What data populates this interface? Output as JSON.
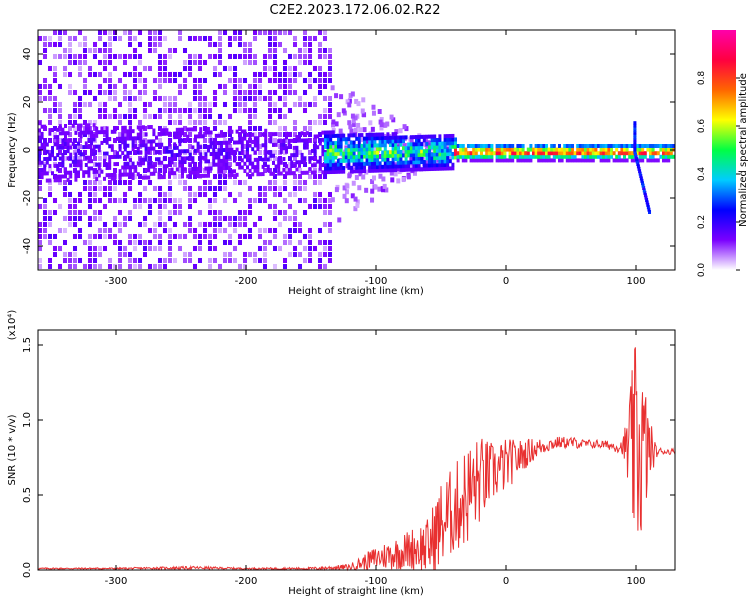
{
  "title": "C2E2.2023.172.06.02.R22",
  "chart_data": [
    {
      "type": "heatmap",
      "xlabel": "Height of straight line (km)",
      "ylabel": "Frequency (Hz)",
      "xlim": [
        -360,
        130
      ],
      "ylim": [
        -50,
        50
      ],
      "xticks": [
        -300,
        -200,
        -100,
        0,
        100
      ],
      "yticks": [
        -40,
        -20,
        0,
        20,
        40
      ],
      "colorbar": {
        "label": "Normalized spectral amplitude",
        "range": [
          0,
          1
        ],
        "ticks": [
          0.0,
          0.2,
          0.4,
          0.6,
          0.8
        ],
        "colors": [
          "#ffffff",
          "#7a00ff",
          "#0000ff",
          "#00ccff",
          "#00ff44",
          "#ffff00",
          "#ff6600",
          "#ff0040",
          "#ff00aa"
        ]
      },
      "features": [
        {
          "name": "noise-region",
          "x_range": [
            -360,
            -135
          ],
          "y_range": [
            -50,
            50
          ],
          "amplitude": 0.1
        },
        {
          "name": "central-band",
          "x_range": [
            -360,
            130
          ],
          "center_freq": 0,
          "amplitude_start": 0.1,
          "amplitude_end": 0.9
        },
        {
          "name": "feature-near-100",
          "x": 98,
          "freq_range": [
            -25,
            12
          ]
        }
      ]
    },
    {
      "type": "line",
      "xlabel": "Height of straight line (km)",
      "ylabel": "SNR (10 * v/v)",
      "multiplier": "(x10⁴)",
      "xlim": [
        -360,
        130
      ],
      "ylim": [
        0,
        1.6
      ],
      "xticks": [
        -300,
        -200,
        -100,
        0,
        100
      ],
      "yticks": [
        "0.0",
        "0.5",
        "1.0",
        "1.5"
      ],
      "color": "#e83030",
      "series": [
        {
          "x": [
            -360,
            -300,
            -240,
            -200,
            -150,
            -120,
            -110,
            -100,
            -90,
            -80,
            -70,
            -60,
            -50,
            -40,
            -30,
            -20,
            -10,
            0,
            10,
            20,
            30,
            40,
            50,
            60,
            70,
            80,
            90,
            95,
            100,
            105,
            110,
            115,
            120,
            130
          ],
          "y": [
            0.01,
            0.01,
            0.015,
            0.01,
            0.01,
            0.02,
            0.05,
            0.08,
            0.1,
            0.12,
            0.15,
            0.15,
            0.3,
            0.4,
            0.5,
            0.6,
            0.65,
            0.7,
            0.75,
            0.8,
            0.83,
            0.85,
            0.85,
            0.84,
            0.84,
            0.83,
            0.82,
            0.8,
            0.8,
            0.8,
            0.8,
            0.79,
            0.79,
            0.79
          ],
          "amplitude": [
            0.005,
            0.005,
            0.01,
            0.005,
            0.008,
            0.02,
            0.05,
            0.08,
            0.1,
            0.12,
            0.15,
            0.2,
            0.3,
            0.3,
            0.35,
            0.3,
            0.2,
            0.18,
            0.12,
            0.08,
            0.05,
            0.04,
            0.04,
            0.03,
            0.03,
            0.03,
            0.05,
            0.4,
            0.75,
            0.6,
            0.25,
            0.05,
            0.02,
            0.02
          ]
        }
      ]
    }
  ]
}
